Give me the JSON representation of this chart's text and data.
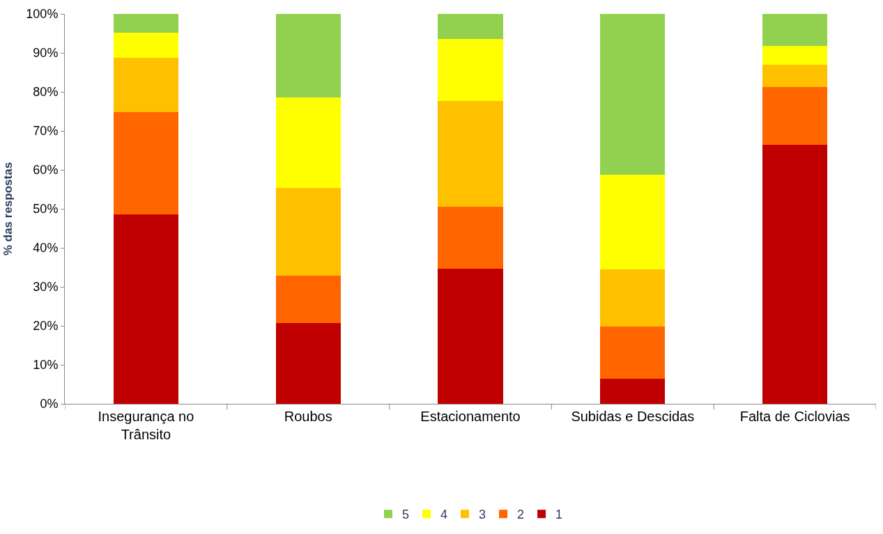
{
  "chart_data": {
    "type": "bar",
    "stacked": true,
    "ylabel": "% das respostas",
    "categories": [
      "Insegurança no Trânsito",
      "Roubos",
      "Estacionamento",
      "Subidas e Descidas",
      "Falta de Ciclovias"
    ],
    "series": [
      {
        "name": "1",
        "color": "#c00000",
        "values": [
          48.6,
          20.7,
          34.6,
          6.5,
          66.4
        ]
      },
      {
        "name": "2",
        "color": "#ff6600",
        "values": [
          26.3,
          12.2,
          15.9,
          13.3,
          14.9
        ]
      },
      {
        "name": "3",
        "color": "#ffc000",
        "values": [
          13.8,
          22.4,
          27.1,
          14.7,
          5.6
        ]
      },
      {
        "name": "4",
        "color": "#ffff00",
        "values": [
          6.5,
          23.3,
          15.9,
          24.3,
          4.8
        ]
      },
      {
        "name": "5",
        "color": "#92d050",
        "values": [
          4.8,
          21.4,
          6.5,
          41.2,
          8.3
        ]
      }
    ],
    "ylim": [
      0,
      100
    ],
    "yticks": [
      {
        "value": 0,
        "label": "0%"
      },
      {
        "value": 10,
        "label": "10%"
      },
      {
        "value": 20,
        "label": "20%"
      },
      {
        "value": 30,
        "label": "30%"
      },
      {
        "value": 40,
        "label": "40%"
      },
      {
        "value": 50,
        "label": "50%"
      },
      {
        "value": 60,
        "label": "60%"
      },
      {
        "value": 70,
        "label": "70%"
      },
      {
        "value": 80,
        "label": "80%"
      },
      {
        "value": 90,
        "label": "90%"
      },
      {
        "value": 100,
        "label": "100%"
      }
    ],
    "grid": false,
    "legend": "bottom"
  }
}
